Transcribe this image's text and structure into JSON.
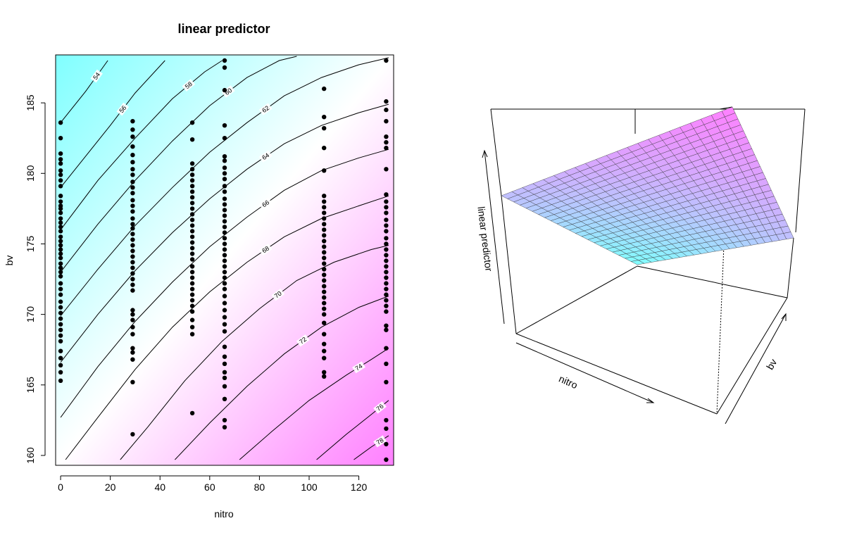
{
  "chart_data": [
    {
      "type": "contour",
      "title": "linear predictor",
      "xlabel": "nitro",
      "ylabel": "bv",
      "xlim": [
        -2,
        134
      ],
      "ylim": [
        159.3,
        188.4
      ],
      "xticks": [
        0,
        20,
        40,
        60,
        80,
        100,
        120
      ],
      "yticks": [
        160,
        165,
        170,
        175,
        180,
        185
      ],
      "colors": {
        "low": "#80ffff",
        "mid": "#ffffff",
        "high": "#ff80ff"
      },
      "contour_levels": [
        54,
        56,
        58,
        60,
        62,
        64,
        66,
        68,
        70,
        72,
        74,
        76,
        78
      ],
      "contour_lines": [
        {
          "level": 54,
          "points": [
            [
              0,
              183.6
            ],
            [
              10,
              185.8
            ],
            [
              19,
              188
            ]
          ]
        },
        {
          "level": 56,
          "points": [
            [
              0,
              179
            ],
            [
              10,
              181.2
            ],
            [
              20,
              183.4
            ],
            [
              30,
              185.7
            ],
            [
              42,
              188
            ]
          ]
        },
        {
          "level": 58,
          "points": [
            [
              0,
              176
            ],
            [
              15,
              179.5
            ],
            [
              30,
              182.5
            ],
            [
              45,
              185.3
            ],
            [
              58,
              187.2
            ],
            [
              65,
              188
            ]
          ]
        },
        {
          "level": 60,
          "points": [
            [
              0,
              173
            ],
            [
              15,
              176.4
            ],
            [
              30,
              179.5
            ],
            [
              45,
              182.3
            ],
            [
              60,
              184.8
            ],
            [
              75,
              186.8
            ],
            [
              88,
              188
            ],
            [
              95,
              188.3
            ]
          ]
        },
        {
          "level": 62,
          "points": [
            [
              0,
              169.9
            ],
            [
              15,
              173.2
            ],
            [
              30,
              176.3
            ],
            [
              45,
              179
            ],
            [
              60,
              181.5
            ],
            [
              75,
              183.6
            ],
            [
              90,
              185.5
            ],
            [
              105,
              186.8
            ],
            [
              120,
              187.7
            ],
            [
              132,
              188.2
            ]
          ]
        },
        {
          "level": 64,
          "points": [
            [
              0,
              166.6
            ],
            [
              15,
              170
            ],
            [
              30,
              173.1
            ],
            [
              45,
              175.8
            ],
            [
              60,
              178.2
            ],
            [
              75,
              180.3
            ],
            [
              90,
              182.1
            ],
            [
              105,
              183.4
            ],
            [
              120,
              184.3
            ],
            [
              132,
              184.9
            ]
          ]
        },
        {
          "level": 66,
          "points": [
            [
              0,
              162.7
            ],
            [
              15,
              166.3
            ],
            [
              30,
              169.5
            ],
            [
              45,
              172.3
            ],
            [
              60,
              174.8
            ],
            [
              75,
              176.9
            ],
            [
              90,
              178.8
            ],
            [
              105,
              180.2
            ],
            [
              120,
              181.1
            ],
            [
              132,
              181.7
            ]
          ]
        },
        {
          "level": 68,
          "points": [
            [
              2,
              159.7
            ],
            [
              15,
              162.7
            ],
            [
              30,
              166.1
            ],
            [
              45,
              169.1
            ],
            [
              60,
              171.6
            ],
            [
              75,
              173.7
            ],
            [
              90,
              175.5
            ],
            [
              105,
              176.8
            ],
            [
              120,
              177.7
            ],
            [
              132,
              178.4
            ]
          ]
        },
        {
          "level": 70,
          "points": [
            [
              24,
              159.7
            ],
            [
              35,
              162
            ],
            [
              50,
              165.3
            ],
            [
              65,
              168.1
            ],
            [
              80,
              170.4
            ],
            [
              95,
              172.4
            ],
            [
              110,
              173.7
            ],
            [
              125,
              174.6
            ],
            [
              132,
              174.9
            ]
          ]
        },
        {
          "level": 72,
          "points": [
            [
              46,
              159.7
            ],
            [
              60,
              162.3
            ],
            [
              75,
              164.9
            ],
            [
              90,
              167.2
            ],
            [
              105,
              169.1
            ],
            [
              120,
              170.5
            ],
            [
              132,
              171.3
            ]
          ]
        },
        {
          "level": 74,
          "points": [
            [
              72,
              159.7
            ],
            [
              85,
              161.7
            ],
            [
              100,
              163.9
            ],
            [
              115,
              165.7
            ],
            [
              125,
              166.8
            ],
            [
              132,
              167.6
            ]
          ]
        },
        {
          "level": 76,
          "points": [
            [
              103,
              159.7
            ],
            [
              115,
              161.5
            ],
            [
              125,
              162.9
            ],
            [
              132,
              163.9
            ]
          ]
        },
        {
          "level": 78,
          "points": [
            [
              118,
              159.7
            ],
            [
              125,
              160.6
            ],
            [
              132,
              161.4
            ]
          ]
        }
      ],
      "points_x": [
        0,
        29,
        53,
        66,
        106,
        131
      ],
      "points": [
        {
          "x": 0,
          "y": [
            183.6,
            182.5,
            181.4,
            181.0,
            180.7,
            180.2,
            179.9,
            179.5,
            179.1,
            178.4,
            178.0,
            177.7,
            177.5,
            177.2,
            176.8,
            176.5,
            176.2,
            175.9,
            175.5,
            175.2,
            174.9,
            174.6,
            174.3,
            174.0,
            173.6,
            173.3,
            173.0,
            172.7,
            172.2,
            171.8,
            171.4,
            170.9,
            170.5,
            170.1,
            169.7,
            169.3,
            168.9,
            168.5,
            168.1,
            167.4,
            166.9,
            166.4,
            165.9,
            165.3
          ]
        },
        {
          "x": 29,
          "y": [
            183.7,
            183.1,
            182.6,
            181.9,
            181.3,
            180.8,
            180.3,
            179.9,
            179.4,
            179.0,
            178.6,
            178.1,
            177.7,
            177.3,
            176.8,
            176.4,
            176.1,
            175.7,
            175.3,
            174.9,
            174.5,
            174.1,
            173.7,
            173.3,
            172.9,
            172.5,
            172.1,
            171.7,
            170.3,
            170.0,
            169.6,
            169.1,
            168.6,
            167.6,
            167.3,
            166.8,
            165.2,
            161.5
          ]
        },
        {
          "x": 53,
          "y": [
            183.6,
            182.4,
            180.7,
            180.3,
            179.9,
            179.5,
            179.1,
            178.7,
            178.3,
            177.9,
            177.5,
            177.1,
            176.7,
            176.3,
            175.9,
            175.5,
            175.1,
            174.7,
            174.3,
            173.9,
            173.4,
            173.0,
            172.6,
            172.2,
            171.8,
            171.4,
            171.0,
            170.6,
            170.2,
            169.6,
            169.1,
            168.6,
            163.0
          ]
        },
        {
          "x": 66,
          "y": [
            188.0,
            187.5,
            185.9,
            183.4,
            182.5,
            181.2,
            180.9,
            180.4,
            180.0,
            179.6,
            179.1,
            178.7,
            178.2,
            177.8,
            177.4,
            177.0,
            176.6,
            176.2,
            175.8,
            175.4,
            175.0,
            174.6,
            174.2,
            173.8,
            173.4,
            173.0,
            172.6,
            172.2,
            171.8,
            171.3,
            170.8,
            170.3,
            169.8,
            169.3,
            168.8,
            167.7,
            167.0,
            166.5,
            165.9,
            165.5,
            164.9,
            164.0,
            162.5,
            162.0
          ]
        },
        {
          "x": 106,
          "y": [
            186.0,
            184.0,
            183.2,
            181.8,
            180.2,
            178.4,
            178.0,
            177.6,
            177.2,
            176.8,
            176.4,
            176.0,
            175.6,
            175.2,
            174.8,
            174.4,
            174.0,
            173.6,
            173.2,
            172.8,
            172.4,
            172.0,
            171.6,
            171.2,
            170.8,
            170.4,
            170.0,
            169.4,
            168.6,
            167.9,
            167.4,
            166.9,
            165.9,
            165.6
          ]
        },
        {
          "x": 131,
          "y": [
            188.0,
            185.1,
            184.5,
            183.7,
            182.6,
            182.2,
            181.8,
            180.3,
            178.5,
            178.0,
            177.6,
            177.2,
            176.7,
            176.3,
            175.9,
            175.4,
            175.0,
            174.6,
            174.2,
            173.8,
            173.4,
            173.0,
            172.6,
            172.2,
            171.8,
            171.4,
            171.0,
            170.6,
            170.2,
            169.2,
            168.9,
            167.6,
            166.5,
            165.2,
            162.5,
            161.9,
            160.8,
            159.7
          ]
        }
      ]
    },
    {
      "type": "surface",
      "xlabel": "nitro",
      "ylabel": "bv",
      "zlabel": "linear predictor",
      "grid": true,
      "colors": {
        "low": "#80ffff",
        "high": "#ff80ff",
        "mesh": "#333333"
      }
    }
  ]
}
